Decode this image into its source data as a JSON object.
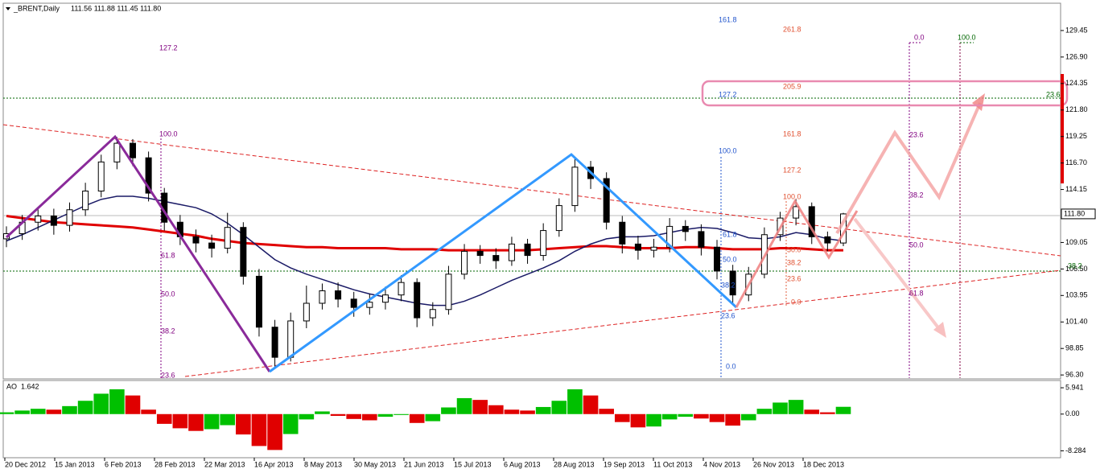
{
  "chart_data": {
    "type": "candlestick",
    "symbol": "_BRENT,Daily",
    "header_prices": "111.56 111.88 111.45 111.80",
    "candles": [
      [
        109.4,
        110.6,
        108.6,
        109.9
      ],
      [
        109.9,
        111.7,
        109.3,
        111.0
      ],
      [
        111.0,
        112.4,
        110.2,
        111.6
      ],
      [
        111.6,
        112.3,
        109.8,
        110.7
      ],
      [
        110.7,
        112.9,
        110.1,
        112.2
      ],
      [
        112.2,
        114.8,
        111.6,
        114.0
      ],
      [
        114.0,
        117.5,
        113.4,
        116.8
      ],
      [
        116.8,
        119.2,
        116.1,
        118.6
      ],
      [
        118.6,
        119.0,
        116.4,
        117.2
      ],
      [
        117.2,
        117.8,
        113.0,
        113.8
      ],
      [
        113.8,
        114.3,
        110.2,
        111.0
      ],
      [
        111.0,
        111.7,
        108.8,
        109.6
      ],
      [
        109.6,
        110.3,
        108.1,
        109.0
      ],
      [
        109.0,
        109.8,
        107.6,
        108.5
      ],
      [
        108.5,
        111.9,
        108.0,
        110.5
      ],
      [
        110.5,
        111.0,
        105.0,
        105.8
      ],
      [
        105.8,
        106.5,
        100.0,
        100.9
      ],
      [
        100.9,
        101.6,
        97.1,
        98.0
      ],
      [
        98.0,
        102.3,
        97.6,
        101.5
      ],
      [
        101.5,
        104.9,
        100.8,
        103.2
      ],
      [
        103.2,
        105.1,
        102.6,
        104.4
      ],
      [
        104.4,
        105.2,
        102.8,
        103.6
      ],
      [
        103.6,
        104.3,
        101.9,
        102.8
      ],
      [
        102.8,
        104.1,
        102.1,
        103.3
      ],
      [
        103.3,
        104.8,
        102.6,
        104.0
      ],
      [
        104.0,
        105.9,
        103.4,
        105.2
      ],
      [
        105.2,
        105.6,
        100.9,
        101.8
      ],
      [
        101.8,
        103.3,
        101.0,
        102.6
      ],
      [
        102.6,
        106.8,
        102.1,
        106.0
      ],
      [
        106.0,
        108.9,
        105.5,
        108.2
      ],
      [
        108.2,
        108.8,
        107.0,
        107.8
      ],
      [
        107.8,
        108.5,
        106.5,
        107.3
      ],
      [
        107.3,
        109.6,
        106.8,
        108.9
      ],
      [
        108.9,
        109.4,
        107.0,
        107.8
      ],
      [
        107.8,
        110.9,
        107.3,
        110.2
      ],
      [
        110.2,
        113.3,
        109.6,
        112.6
      ],
      [
        112.6,
        117.3,
        112.0,
        116.3
      ],
      [
        116.3,
        116.9,
        114.2,
        115.2
      ],
      [
        115.2,
        115.8,
        110.3,
        111.0
      ],
      [
        111.0,
        111.6,
        108.0,
        108.9
      ],
      [
        108.9,
        109.7,
        107.4,
        108.3
      ],
      [
        108.3,
        109.4,
        107.6,
        108.6
      ],
      [
        108.6,
        111.4,
        108.1,
        110.6
      ],
      [
        110.6,
        111.2,
        109.2,
        110.1
      ],
      [
        110.1,
        110.8,
        107.8,
        108.6
      ],
      [
        108.6,
        109.3,
        105.5,
        106.3
      ],
      [
        106.3,
        106.9,
        103.2,
        104.0
      ],
      [
        104.0,
        106.7,
        103.4,
        106.0
      ],
      [
        106.0,
        110.5,
        105.6,
        109.8
      ],
      [
        109.8,
        112.0,
        109.2,
        111.4
      ],
      [
        111.4,
        113.2,
        110.7,
        112.5
      ],
      [
        112.5,
        112.9,
        108.9,
        109.6
      ],
      [
        109.6,
        110.1,
        108.2,
        109.0
      ],
      [
        109.0,
        111.9,
        108.7,
        111.8
      ]
    ],
    "series": [
      {
        "color": "#e00000",
        "values": [
          111.6,
          111.4,
          111.2,
          111.0,
          110.9,
          110.8,
          110.7,
          110.6,
          110.5,
          110.3,
          110.1,
          109.9,
          109.7,
          109.4,
          109.2,
          109.0,
          108.9,
          108.8,
          108.7,
          108.6,
          108.6,
          108.5,
          108.5,
          108.5,
          108.5,
          108.4,
          108.4,
          108.4,
          108.3,
          108.3,
          108.3,
          108.3,
          108.3,
          108.3,
          108.4,
          108.5,
          108.6,
          108.7,
          108.7,
          108.6,
          108.5,
          108.5,
          108.5,
          108.6,
          108.6,
          108.5,
          108.4,
          108.4,
          108.4,
          108.5,
          108.5,
          108.4,
          108.3,
          108.3
        ]
      },
      {
        "color": "#1a1a66",
        "values": [
          109.2,
          109.8,
          110.5,
          111.2,
          111.9,
          112.6,
          113.2,
          113.5,
          113.5,
          113.3,
          113.0,
          112.7,
          112.4,
          111.8,
          110.9,
          109.8,
          108.6,
          107.4,
          106.6,
          106.0,
          105.5,
          105.0,
          104.5,
          104.1,
          103.8,
          103.5,
          103.2,
          103.0,
          103.0,
          103.4,
          104.0,
          104.7,
          105.4,
          106.0,
          106.6,
          107.3,
          108.2,
          108.9,
          109.4,
          109.6,
          109.6,
          109.7,
          110.0,
          110.3,
          110.5,
          110.4,
          110.0,
          109.5,
          109.4,
          109.6,
          110.0,
          109.8,
          109.4,
          109.2
        ]
      }
    ],
    "ylim": [
      96.0,
      132.0
    ],
    "yticks": [
      129.45,
      {
        "value": 126.9,
        "label": "126.90"
      },
      124.35,
      {
        "value": 121.8,
        "label": "121.80"
      },
      119.25,
      {
        "value": 116.7,
        "label": "116.70"
      },
      114.15,
      109.05,
      {
        "value": 106.5,
        "label": "106.50"
      },
      103.95,
      {
        "value": 101.4,
        "label": "101.40"
      },
      98.85,
      {
        "value": 96.3,
        "label": "96.30"
      }
    ],
    "last_price": {
      "value": 111.8,
      "label": "111.80"
    },
    "x_labels": [
      "20 Dec 2012",
      "15 Jan 2013",
      "6 Feb 2013",
      "28 Feb 2013",
      "22 Mar 2013",
      "16 Apr 2013",
      "8 May 2013",
      "30 May 2013",
      "21 Jun 2013",
      "15 Jul 2013",
      "6 Aug 2013",
      "28 Aug 2013",
      "19 Sep 2013",
      "11 Oct 2013",
      "4 Nov 2013",
      "26 Nov 2013",
      "18 Dec 2013"
    ],
    "fib_labels": {
      "purple_left": [
        "127.2",
        "100.0",
        "61.8",
        "50.0",
        "38.2",
        "23.6"
      ],
      "blue": [
        "161.8",
        "127.2",
        "100.0",
        "61.8",
        "50.0",
        "38.2",
        "23.6",
        "0.0"
      ],
      "salmon": [
        "261.8",
        "205.9",
        "161.8",
        "127.2",
        "100.0",
        "50.0",
        "38.2",
        "23.6",
        "0.0"
      ],
      "purple_right": [
        "0.0",
        "23.6",
        "38.2",
        "50.0",
        "61.8"
      ],
      "green": [
        "100.0"
      ],
      "edge": [
        "23.6",
        "38.2"
      ]
    },
    "ao": {
      "name": "AO",
      "values": [
        0.4,
        0.8,
        1.2,
        1.0,
        1.8,
        3.0,
        4.6,
        5.6,
        4.2,
        1.0,
        -2.2,
        -3.2,
        -3.8,
        -3.4,
        -2.5,
        -4.6,
        -7.2,
        -8.1,
        -4.5,
        -1.2,
        0.6,
        -0.4,
        -1.1,
        -1.4,
        -0.6,
        -0.2,
        -2.0,
        -1.6,
        1.5,
        3.6,
        3.2,
        2.0,
        1.0,
        0.8,
        1.6,
        3.0,
        5.6,
        4.2,
        1.2,
        -1.8,
        -3.0,
        -2.8,
        -1.2,
        -0.6,
        -1.0,
        -1.8,
        -2.6,
        -1.4,
        1.2,
        2.6,
        3.2,
        1.0,
        0.4,
        1.642
      ],
      "up_color": "#00c000",
      "down_color": "#e00000",
      "ylim": [
        -9.3,
        7.4
      ],
      "yticks": [
        5.941,
        {
          "value": 0,
          "label": "0.00"
        },
        -8.284
      ]
    }
  }
}
